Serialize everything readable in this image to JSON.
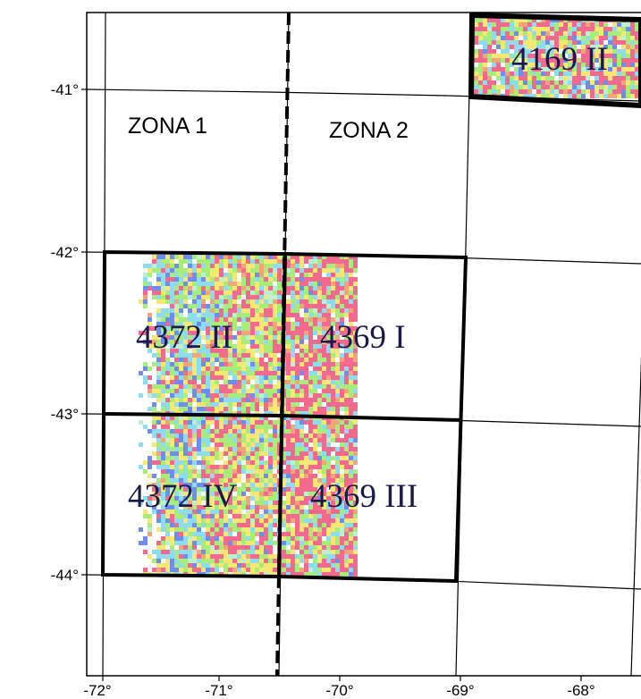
{
  "map": {
    "longitude_labels": [
      "-72°",
      "-71°",
      "-70°",
      "-69°",
      "-68°"
    ],
    "latitude_labels": [
      "-41°",
      "-42°",
      "-43°",
      "-44°"
    ],
    "zones": [
      {
        "id": "zone-1",
        "label": "ZONA 1"
      },
      {
        "id": "zone-2",
        "label": "ZONA 2"
      }
    ],
    "tiles": [
      {
        "id": "4169-ii",
        "label": "4169 II"
      },
      {
        "id": "4372-ii",
        "label": "4372 II"
      },
      {
        "id": "4369-i",
        "label": "4369 I"
      },
      {
        "id": "4372-iv",
        "label": "4372 IV"
      },
      {
        "id": "4369-iii",
        "label": "4369 III"
      }
    ],
    "raster_palette": [
      "#f46a8e",
      "#f7e873",
      "#a8ec7a",
      "#8ddcf2",
      "#6f8cf0",
      "#f2a47a",
      "#bdf0d0"
    ],
    "colors": {
      "graticule": "#000000",
      "frame": "#000000",
      "zone_boundary": "#000000",
      "tile_label": "#1a1a4a"
    }
  }
}
